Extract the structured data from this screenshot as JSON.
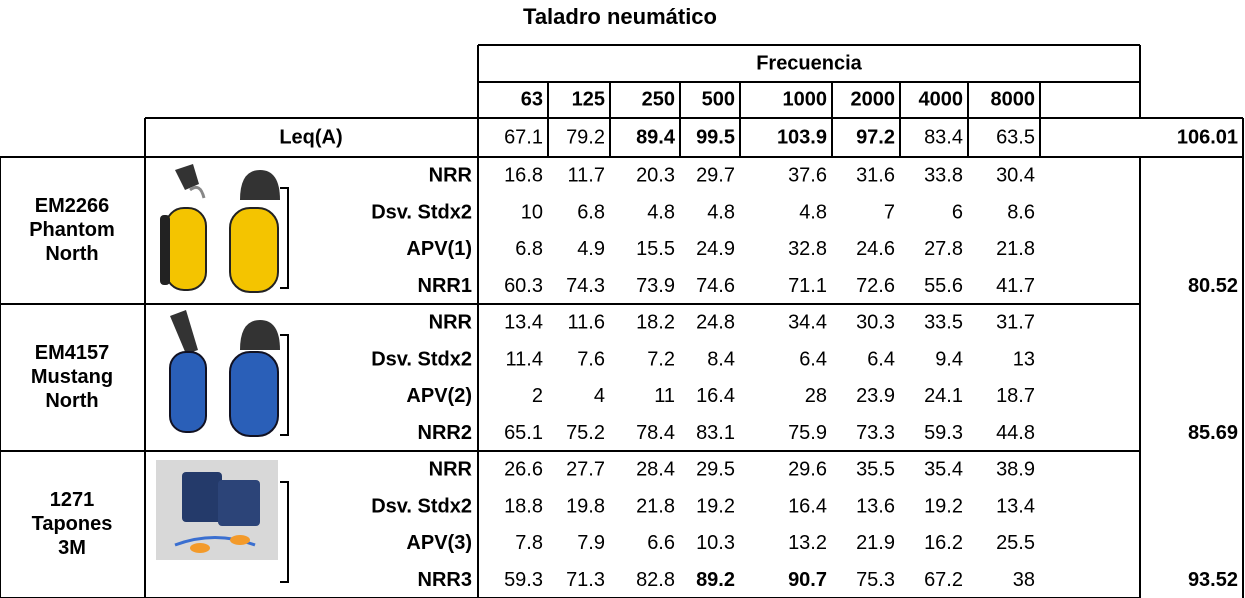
{
  "title": "Taladro neumático",
  "frequency_label": "Frecuencia",
  "frequencies": [
    63,
    125,
    250,
    500,
    1000,
    2000,
    4000,
    8000
  ],
  "highlight_color": "#ee2222",
  "leq": {
    "label": "Leq(A)",
    "values": [
      67.1,
      79.2,
      89.4,
      99.5,
      103.9,
      97.2,
      83.4,
      63.5
    ],
    "highlight": [
      2,
      3,
      4,
      5
    ],
    "total": 106.01,
    "total_highlight": true
  },
  "protectors": [
    {
      "name": [
        "EM2266",
        "Phantom",
        "North"
      ],
      "rows": [
        {
          "label": "NRR",
          "values": [
            16.8,
            11.7,
            20.3,
            29.7,
            37.6,
            31.6,
            33.8,
            30.4
          ],
          "highlight": []
        },
        {
          "label": "Dsv. Stdx2",
          "values": [
            10,
            6.8,
            4.8,
            4.8,
            4.8,
            7,
            6,
            8.6
          ],
          "highlight": []
        },
        {
          "label": "APV(1)",
          "values": [
            6.8,
            4.9,
            15.5,
            24.9,
            32.8,
            24.6,
            27.8,
            21.8
          ],
          "highlight": []
        },
        {
          "label": "NRR1",
          "values": [
            60.3,
            74.3,
            73.9,
            74.6,
            71.1,
            72.6,
            55.6,
            41.7
          ],
          "highlight": []
        }
      ],
      "total": 80.52,
      "total_highlight": false
    },
    {
      "name": [
        "EM4157",
        "Mustang",
        "North"
      ],
      "rows": [
        {
          "label": "NRR",
          "values": [
            13.4,
            11.6,
            18.2,
            24.8,
            34.4,
            30.3,
            33.5,
            31.7
          ],
          "highlight": []
        },
        {
          "label": "Dsv. Stdx2",
          "values": [
            11.4,
            7.6,
            7.2,
            8.4,
            6.4,
            6.4,
            9.4,
            13
          ],
          "highlight": []
        },
        {
          "label": "APV(2)",
          "values": [
            2,
            4,
            11,
            16.4,
            28,
            23.9,
            24.1,
            18.7
          ],
          "highlight": []
        },
        {
          "label": "NRR2",
          "values": [
            65.1,
            75.2,
            78.4,
            83.1,
            75.9,
            73.3,
            59.3,
            44.8
          ],
          "highlight": []
        }
      ],
      "total": 85.69,
      "total_highlight": true
    },
    {
      "name": [
        "1271",
        "Tapones",
        "3M"
      ],
      "rows": [
        {
          "label": "NRR",
          "values": [
            26.6,
            27.7,
            28.4,
            29.5,
            29.6,
            35.5,
            35.4,
            38.9
          ],
          "highlight": []
        },
        {
          "label": "Dsv. Stdx2",
          "values": [
            18.8,
            19.8,
            21.8,
            19.2,
            16.4,
            13.6,
            19.2,
            13.4
          ],
          "highlight": []
        },
        {
          "label": "APV(3)",
          "values": [
            7.8,
            7.9,
            6.6,
            10.3,
            13.2,
            21.9,
            16.2,
            25.5
          ],
          "highlight": []
        },
        {
          "label": "NRR3",
          "values": [
            59.3,
            71.3,
            82.8,
            89.2,
            90.7,
            75.3,
            67.2,
            38
          ],
          "highlight": [
            3,
            4
          ]
        }
      ],
      "total": 93.52,
      "total_highlight": true
    }
  ]
}
